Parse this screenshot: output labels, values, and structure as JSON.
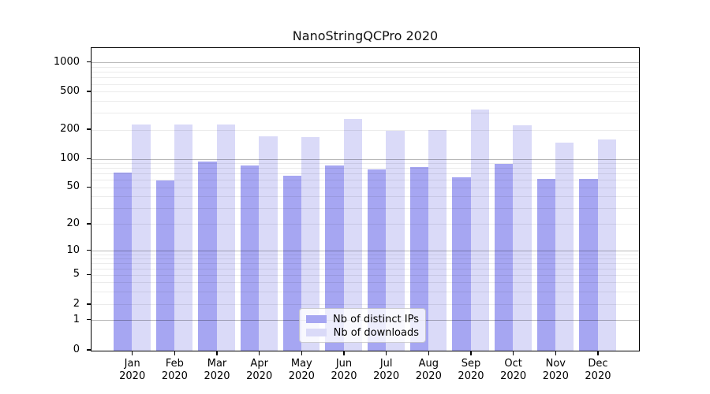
{
  "title": "NanoStringQCPro 2020",
  "chart_data": {
    "type": "bar",
    "title": "NanoStringQCPro 2020",
    "categories": [
      "Jan 2020",
      "Feb 2020",
      "Mar 2020",
      "Apr 2020",
      "May 2020",
      "Jun 2020",
      "Jul 2020",
      "Aug 2020",
      "Sep 2020",
      "Oct 2020",
      "Nov 2020",
      "Dec 2020"
    ],
    "x_tick_line1": [
      "Jan",
      "Feb",
      "Mar",
      "Apr",
      "May",
      "Jun",
      "Jul",
      "Aug",
      "Sep",
      "Oct",
      "Nov",
      "Dec"
    ],
    "x_tick_line2": "2020",
    "series": [
      {
        "name": "Nb of distinct IPs",
        "color": "#a6a6f2",
        "values": [
          72,
          60,
          95,
          86,
          67,
          87,
          79,
          83,
          65,
          89,
          62,
          62
        ]
      },
      {
        "name": "Nb of downloads",
        "color": "#dadaf8",
        "values": [
          228,
          227,
          227,
          172,
          170,
          260,
          195,
          202,
          328,
          226,
          148,
          160
        ]
      }
    ],
    "y_axis": {
      "ticks": [
        0,
        1,
        2,
        5,
        10,
        20,
        50,
        100,
        200,
        500,
        1000
      ],
      "scale": "log-like with 0 baseline",
      "ylim": [
        0,
        1400
      ]
    },
    "grid": {
      "horizontal": true,
      "major_gridlines_at": [
        1,
        10,
        100,
        1000
      ],
      "minor_gridlines": "at 2-9 of each decade"
    },
    "legend_position": "lower-center-inside",
    "legend": [
      "Nb of distinct IPs",
      "Nb of downloads"
    ]
  },
  "colors": {
    "background": "#ffffff",
    "frame": "#000000",
    "major_grid": "#b8b8b8",
    "minor_grid": "#ebebeb",
    "series_1": "#a6a6f2",
    "series_2": "#dadaf8"
  }
}
